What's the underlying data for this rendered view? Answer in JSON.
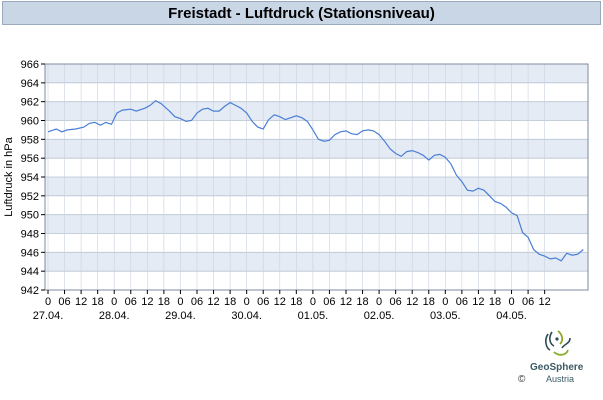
{
  "chart_data": {
    "type": "line",
    "title": "Freistadt - Luftdruck (Stationsniveau)",
    "ylabel": "Luftdruck in hPa",
    "xlabel": "",
    "ylim": [
      942,
      966
    ],
    "yticks": [
      942,
      944,
      946,
      948,
      950,
      952,
      954,
      956,
      958,
      960,
      962,
      964,
      966
    ],
    "xlim_hours": [
      0,
      186
    ],
    "hour_ticks": [
      "0",
      "06",
      "12",
      "18",
      "0",
      "06",
      "12",
      "18",
      "0",
      "06",
      "12",
      "18",
      "0",
      "06",
      "12",
      "18",
      "0",
      "06",
      "12",
      "18",
      "0",
      "06",
      "12",
      "18",
      "0",
      "06",
      "12",
      "18",
      "0",
      "06",
      "12"
    ],
    "date_labels": [
      "27.04.",
      "28.04.",
      "29.04.",
      "30.04.",
      "01.05.",
      "02.05.",
      "03.05.",
      "04.05."
    ],
    "grid": true,
    "series": [
      {
        "color": "#4a7fd6",
        "points": [
          [
            0,
            958.8
          ],
          [
            3,
            959.1
          ],
          [
            5,
            958.8
          ],
          [
            7,
            959.0
          ],
          [
            10,
            959.1
          ],
          [
            13,
            959.3
          ],
          [
            15,
            959.7
          ],
          [
            17,
            959.8
          ],
          [
            19,
            959.5
          ],
          [
            21,
            959.8
          ],
          [
            23,
            959.6
          ],
          [
            25,
            960.8
          ],
          [
            27,
            961.1
          ],
          [
            30,
            961.2
          ],
          [
            32,
            961.0
          ],
          [
            35,
            961.3
          ],
          [
            37,
            961.6
          ],
          [
            39,
            962.1
          ],
          [
            41,
            961.8
          ],
          [
            44,
            961.0
          ],
          [
            46,
            960.4
          ],
          [
            48,
            960.2
          ],
          [
            50,
            959.9
          ],
          [
            52,
            960.0
          ],
          [
            54,
            960.8
          ],
          [
            56,
            961.2
          ],
          [
            58,
            961.3
          ],
          [
            60,
            961.0
          ],
          [
            62,
            961.0
          ],
          [
            64,
            961.5
          ],
          [
            66,
            961.9
          ],
          [
            68,
            961.6
          ],
          [
            70,
            961.3
          ],
          [
            72,
            960.8
          ],
          [
            74,
            959.9
          ],
          [
            76,
            959.3
          ],
          [
            78,
            959.1
          ],
          [
            80,
            960.1
          ],
          [
            82,
            960.6
          ],
          [
            84,
            960.4
          ],
          [
            86,
            960.1
          ],
          [
            88,
            960.3
          ],
          [
            90,
            960.5
          ],
          [
            92,
            960.3
          ],
          [
            94,
            959.9
          ],
          [
            96,
            959.0
          ],
          [
            98,
            958.0
          ],
          [
            100,
            957.8
          ],
          [
            102,
            957.9
          ],
          [
            104,
            958.5
          ],
          [
            106,
            958.8
          ],
          [
            108,
            958.9
          ],
          [
            110,
            958.6
          ],
          [
            112,
            958.5
          ],
          [
            114,
            958.9
          ],
          [
            116,
            959.0
          ],
          [
            118,
            958.9
          ],
          [
            120,
            958.5
          ],
          [
            122,
            957.8
          ],
          [
            124,
            957.0
          ],
          [
            126,
            956.5
          ],
          [
            128,
            956.2
          ],
          [
            130,
            956.7
          ],
          [
            132,
            956.8
          ],
          [
            134,
            956.6
          ],
          [
            136,
            956.3
          ],
          [
            138,
            955.8
          ],
          [
            140,
            956.3
          ],
          [
            142,
            956.4
          ],
          [
            144,
            956.1
          ],
          [
            146,
            955.4
          ],
          [
            148,
            954.2
          ],
          [
            150,
            953.5
          ],
          [
            152,
            952.6
          ],
          [
            154,
            952.5
          ],
          [
            156,
            952.8
          ],
          [
            158,
            952.6
          ],
          [
            160,
            952.0
          ],
          [
            162,
            951.4
          ],
          [
            164,
            951.2
          ],
          [
            166,
            950.8
          ],
          [
            168,
            950.2
          ],
          [
            170,
            949.9
          ],
          [
            172,
            948.1
          ],
          [
            174,
            947.6
          ],
          [
            176,
            946.3
          ],
          [
            178,
            945.8
          ],
          [
            180,
            945.6
          ],
          [
            182,
            945.3
          ],
          [
            184,
            945.4
          ],
          [
            186,
            945.1
          ],
          [
            188,
            945.9
          ],
          [
            190,
            945.7
          ],
          [
            192,
            945.8
          ],
          [
            194,
            946.3
          ]
        ]
      }
    ]
  },
  "footer": {
    "brand": "GeoSphere",
    "sub": "Austria",
    "copyright": "©"
  }
}
